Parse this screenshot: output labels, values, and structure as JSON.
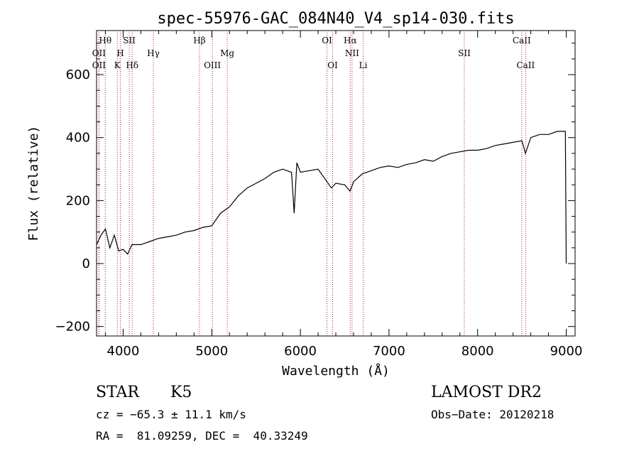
{
  "chart_data": {
    "type": "line",
    "title": "spec-55976-GAC_084N40_V4_sp14-030.fits",
    "xlabel": "Wavelength (Å)",
    "ylabel": "Flux (relative)",
    "xlim": [
      3700,
      9100
    ],
    "ylim": [
      -230,
      740
    ],
    "x_ticks": [
      4000,
      5000,
      6000,
      7000,
      8000,
      9000
    ],
    "y_ticks": [
      -200,
      0,
      200,
      400,
      600
    ],
    "x_tick_labels": [
      "4000",
      "5000",
      "6000",
      "7000",
      "8000",
      "9000"
    ],
    "y_tick_labels": [
      "−200",
      "0",
      "200",
      "400",
      "600"
    ],
    "grid": false,
    "series": [
      {
        "x": [
          3700,
          3750,
          3800,
          3850,
          3900,
          3950,
          4000,
          4050,
          4100,
          4200,
          4300,
          4400,
          4500,
          4600,
          4700,
          4800,
          4900,
          5000,
          5100,
          5200,
          5300,
          5400,
          5500,
          5600,
          5700,
          5800,
          5900,
          5930,
          5960,
          6000,
          6100,
          6200,
          6300,
          6350,
          6400,
          6500,
          6560,
          6600,
          6700,
          6800,
          6900,
          7000,
          7100,
          7200,
          7300,
          7400,
          7500,
          7600,
          7700,
          7800,
          7900,
          8000,
          8100,
          8200,
          8300,
          8400,
          8500,
          8540,
          8600,
          8700,
          8800,
          8900,
          8990,
          9000
        ],
        "y": [
          60,
          90,
          110,
          50,
          90,
          40,
          45,
          30,
          60,
          60,
          70,
          80,
          85,
          90,
          100,
          105,
          115,
          120,
          160,
          180,
          215,
          240,
          255,
          270,
          290,
          300,
          290,
          160,
          320,
          290,
          295,
          300,
          260,
          240,
          255,
          250,
          230,
          260,
          285,
          295,
          305,
          310,
          305,
          315,
          320,
          330,
          325,
          340,
          350,
          355,
          360,
          360,
          365,
          375,
          380,
          385,
          390,
          350,
          400,
          410,
          410,
          420,
          420,
          0
        ]
      }
    ],
    "spectral_lines": [
      {
        "name": "Hθ",
        "wavelength": 3798,
        "row": 0
      },
      {
        "name": "OII",
        "wavelength": 3727,
        "row": 1
      },
      {
        "name": "OII",
        "wavelength": 3727,
        "row": 2
      },
      {
        "name": "H",
        "wavelength": 3968,
        "row": 1
      },
      {
        "name": "K",
        "wavelength": 3934,
        "row": 2
      },
      {
        "name": "SII",
        "wavelength": 4069,
        "row": 0
      },
      {
        "name": "Hδ",
        "wavelength": 4102,
        "row": 2
      },
      {
        "name": "Hγ",
        "wavelength": 4341,
        "row": 1
      },
      {
        "name": "Hβ",
        "wavelength": 4861,
        "row": 0
      },
      {
        "name": "OIII",
        "wavelength": 5007,
        "row": 2
      },
      {
        "name": "Mg",
        "wavelength": 5175,
        "row": 1
      },
      {
        "name": "OI",
        "wavelength": 6300,
        "row": 0
      },
      {
        "name": "OI",
        "wavelength": 6364,
        "row": 2
      },
      {
        "name": "Hα",
        "wavelength": 6563,
        "row": 0
      },
      {
        "name": "NII",
        "wavelength": 6583,
        "row": 1
      },
      {
        "name": "Li",
        "wavelength": 6708,
        "row": 2
      },
      {
        "name": "SII",
        "wavelength": 7850,
        "row": 1
      },
      {
        "name": "CaII",
        "wavelength": 8498,
        "row": 0
      },
      {
        "name": "CaII",
        "wavelength": 8542,
        "row": 2
      }
    ],
    "colors": {
      "line": "#000000",
      "marker": "#b22222"
    }
  },
  "info": {
    "class_label": "STAR",
    "subclass": "K5",
    "survey": "LAMOST DR2",
    "cz": "cz = −65.3 ± 11.1 km/s",
    "obs_date": "Obs−Date: 20120218",
    "coords": "RA =  81.09259, DEC =  40.33249"
  }
}
